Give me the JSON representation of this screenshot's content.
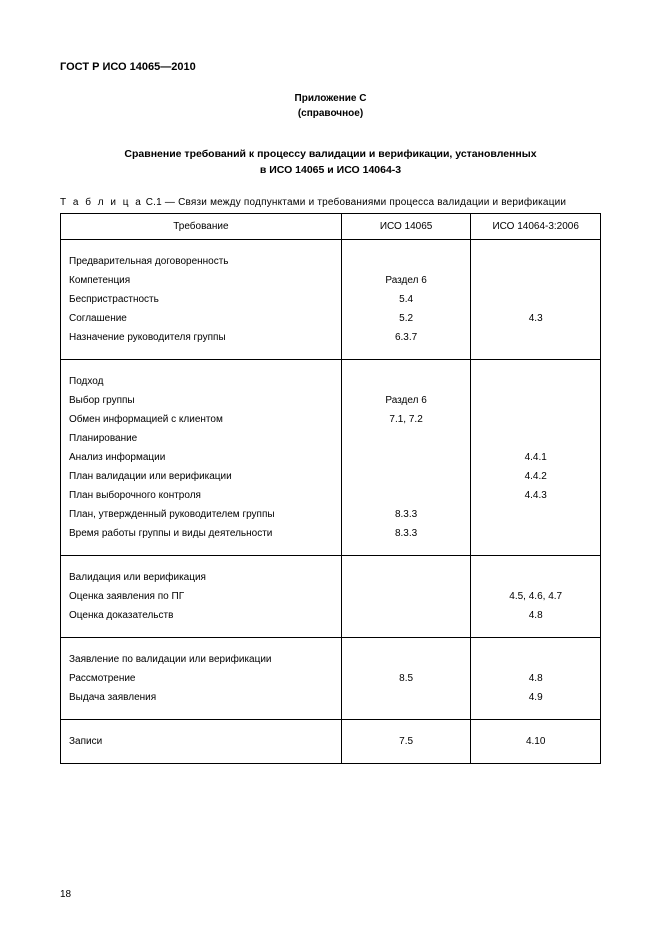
{
  "header": {
    "doc_code": "ГОСТ Р ИСО 14065—2010",
    "appendix_label": "Приложение С",
    "appendix_note": "(справочное)",
    "title_line1": "Сравнение требований к процессу валидации и верификации, установленных",
    "title_line2": "в ИСО 14065 и ИСО 14064-3",
    "table_caption_prefix": "Т а б л и ц а",
    "table_caption_rest": "  С.1 — Связи между подпунктами и требованиями процесса валидации и верификации"
  },
  "table": {
    "columns": [
      "Требование",
      "ИСО 14065",
      "ИСО 14064-3:2006"
    ],
    "column_align": [
      "left",
      "center",
      "center"
    ],
    "column_widths_pct": [
      52,
      24,
      24
    ],
    "border_color": "#000000",
    "font_size_pt": 10,
    "groups": [
      {
        "rows": [
          {
            "req": "Предварительная договоренность",
            "a": "",
            "b": ""
          },
          {
            "req": "Компетенция",
            "a": "Раздел 6",
            "b": ""
          },
          {
            "req": "Беспристрастность",
            "a": "5.4",
            "b": ""
          },
          {
            "req": "Соглашение",
            "a": "5.2",
            "b": "4.3"
          },
          {
            "req": "Назначение руководителя группы",
            "a": "6.3.7",
            "b": ""
          }
        ]
      },
      {
        "rows": [
          {
            "req": "Подход",
            "a": "",
            "b": ""
          },
          {
            "req": "Выбор группы",
            "a": "Раздел 6",
            "b": ""
          },
          {
            "req": "Обмен информацией с клиентом",
            "a": "7.1, 7.2",
            "b": ""
          },
          {
            "req": "Планирование",
            "a": "",
            "b": ""
          },
          {
            "req": "Анализ информации",
            "a": "",
            "b": "4.4.1"
          },
          {
            "req": "План валидации или верификации",
            "a": "",
            "b": "4.4.2"
          },
          {
            "req": "План выборочного контроля",
            "a": "",
            "b": "4.4.3"
          },
          {
            "req": "План, утвержденный руководителем группы",
            "a": "8.3.3",
            "b": ""
          },
          {
            "req": "Время работы группы и виды деятельности",
            "a": "8.3.3",
            "b": ""
          }
        ]
      },
      {
        "rows": [
          {
            "req": "Валидация или верификация",
            "a": "",
            "b": ""
          },
          {
            "req": "Оценка заявления по ПГ",
            "a": "",
            "b": "4.5, 4.6, 4.7"
          },
          {
            "req": "Оценка доказательств",
            "a": "",
            "b": "4.8"
          }
        ]
      },
      {
        "rows": [
          {
            "req": "Заявление по валидации или верификации",
            "a": "",
            "b": ""
          },
          {
            "req": "Рассмотрение",
            "a": "8.5",
            "b": "4.8"
          },
          {
            "req": "Выдача заявления",
            "a": "",
            "b": "4.9"
          }
        ]
      },
      {
        "rows": [
          {
            "req": "Записи",
            "a": "7.5",
            "b": "4.10"
          }
        ]
      }
    ]
  },
  "footer": {
    "page_number": "18"
  }
}
